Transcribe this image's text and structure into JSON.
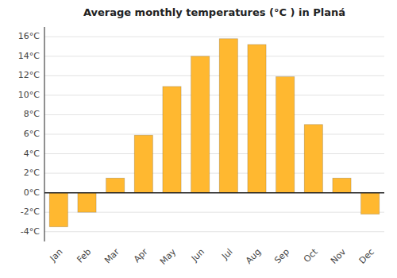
{
  "chart_data": {
    "type": "bar",
    "title": "Average monthly temperatures (°C ) in Planá",
    "categories": [
      "Jan",
      "Feb",
      "Mar",
      "Apr",
      "May",
      "Jun",
      "Jul",
      "Aug",
      "Sep",
      "Oct",
      "Nov",
      "Dec"
    ],
    "values": [
      -3.5,
      -2.0,
      1.5,
      5.9,
      10.9,
      14.0,
      15.8,
      15.2,
      11.9,
      7.0,
      1.5,
      -2.2
    ],
    "color": "#FFB830",
    "ylim": [
      -5,
      17
    ],
    "yticks": [
      {
        "value": -4,
        "label": "-4°C"
      },
      {
        "value": -2,
        "label": "-2°C"
      },
      {
        "value": 0,
        "label": "0°C"
      },
      {
        "value": 2,
        "label": "2°C"
      },
      {
        "value": 4,
        "label": "4°C"
      },
      {
        "value": 6,
        "label": "6°C"
      },
      {
        "value": 8,
        "label": "8°C"
      },
      {
        "value": 10,
        "label": "10°C"
      },
      {
        "value": 12,
        "label": "12°C"
      },
      {
        "value": 14,
        "label": "14°C"
      },
      {
        "value": 16,
        "label": "16°C"
      }
    ],
    "grid": true
  }
}
